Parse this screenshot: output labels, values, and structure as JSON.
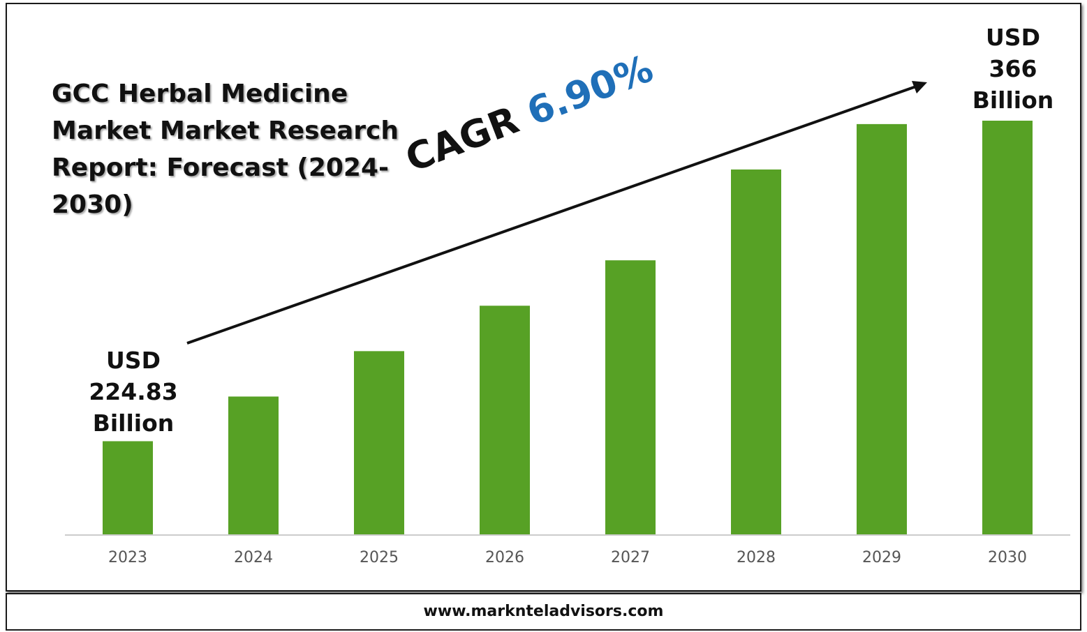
{
  "title": "GCC Herbal Medicine Market Market Research Report: Forecast (2024-2030)",
  "cagr": {
    "label": "CAGR",
    "value": "6.90%"
  },
  "start_label": {
    "line1": "USD",
    "line2": "224.83",
    "line3": "Billion"
  },
  "end_label": {
    "line1": "USD",
    "line2": "366",
    "line3": "Billion"
  },
  "footer": {
    "website": "www.marknteladvisors.com"
  },
  "colors": {
    "bar": "#57a125",
    "cagr_value": "#1f6fb8",
    "axis": "#cccccc",
    "tick_text": "#555555"
  },
  "chart_data": {
    "type": "bar",
    "categories": [
      "2023",
      "2024",
      "2025",
      "2026",
      "2027",
      "2028",
      "2029",
      "2030"
    ],
    "values": [
      224.83,
      244.5,
      264.5,
      284.5,
      304.5,
      344.5,
      364.5,
      366
    ],
    "ylim": [
      183.5,
      366
    ]
  }
}
